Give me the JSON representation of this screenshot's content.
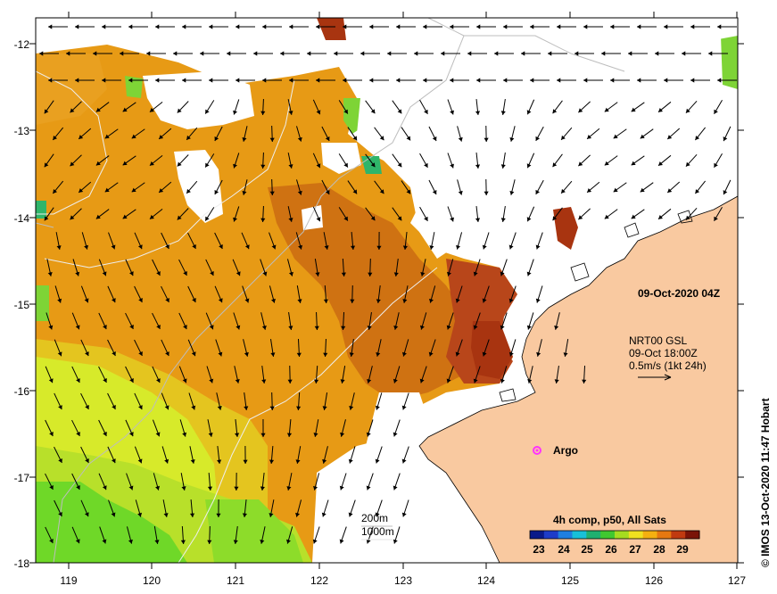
{
  "map": {
    "x_ticks": [
      "119",
      "120",
      "121",
      "122",
      "123",
      "124",
      "125",
      "126",
      "127"
    ],
    "y_ticks": [
      "-12",
      "-13",
      "-14",
      "-15",
      "-16",
      "-17",
      "-18"
    ],
    "lon_range": [
      118.6,
      127.0
    ],
    "lat_range": [
      -18.0,
      -11.75
    ],
    "date_label": "09-Oct-2020 04Z",
    "current_product": "NRT00 GSL",
    "current_time": "09-Oct 18:00Z",
    "current_scale": "0.5m/s (1kt 24h)",
    "argo_label": "Argo",
    "isobath_labels": [
      "200m",
      "1000m"
    ],
    "colorbar_title": "4h comp, p50, All Sats",
    "colorbar_ticks": [
      "23",
      "24",
      "25",
      "26",
      "27",
      "28",
      "29"
    ],
    "colorbar_range": [
      22.5,
      29.7
    ],
    "credit": "© IMOS 13-Oct-2020 11:47 Hobart",
    "colors": {
      "land": "#f9c9a0",
      "warm_orange": "#e79a15",
      "dark_red": "#a83410",
      "yellow_green": "#d7ea2a",
      "green": "#6fd828",
      "argo": "#ff33ff"
    }
  }
}
